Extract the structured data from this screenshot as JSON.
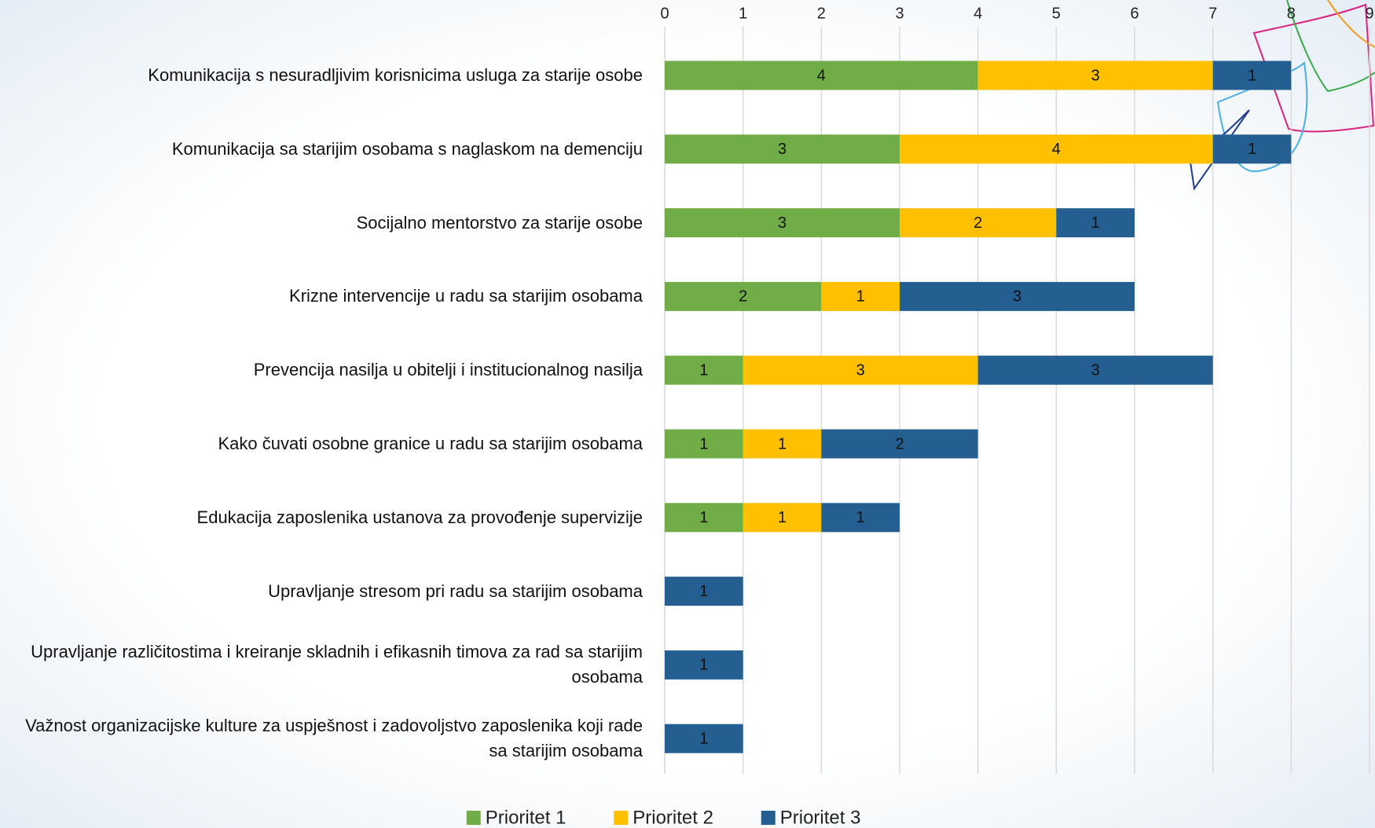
{
  "chart_data": {
    "type": "stacked_barh",
    "categories": [
      "Komunikacija s nesuradljivim korisnicima usluga za starije osobe",
      "Komunikacija sa starijim osobama s naglaskom na demenciju",
      "Socijalno mentorstvo za starije osobe",
      "Krizne intervencije u radu sa starijim osobama",
      "Prevencija nasilja u obitelji i institucionalnog nasilja",
      "Kako čuvati osobne granice u radu sa starijim osobama",
      "Edukacija zaposlenika ustanova za provođenje supervizije",
      "Upravljanje stresom pri radu sa starijim osobama",
      "Upravljanje različitostima i kreiranje skladnih i efikasnih timova za rad sa starijim osobama",
      "Važnost organizacijske kulture za uspješnost i zadovoljstvo zaposlenika koji rade sa starijim osobama"
    ],
    "series": [
      {
        "name": "Prioritet 1",
        "color": "#70ad47",
        "values": [
          4,
          3,
          3,
          2,
          1,
          1,
          1,
          null,
          null,
          null
        ]
      },
      {
        "name": "Prioritet 2",
        "color": "#ffc000",
        "values": [
          3,
          4,
          2,
          1,
          3,
          1,
          1,
          null,
          null,
          null
        ]
      },
      {
        "name": "Prioritet 3",
        "color": "#255e91",
        "values": [
          1,
          1,
          1,
          3,
          3,
          2,
          1,
          1,
          1,
          1
        ]
      }
    ],
    "xlim": [
      0,
      9
    ],
    "xticks": [
      0,
      1,
      2,
      3,
      4,
      5,
      6,
      7,
      8,
      9
    ],
    "grid": true,
    "legend": "bottom"
  }
}
